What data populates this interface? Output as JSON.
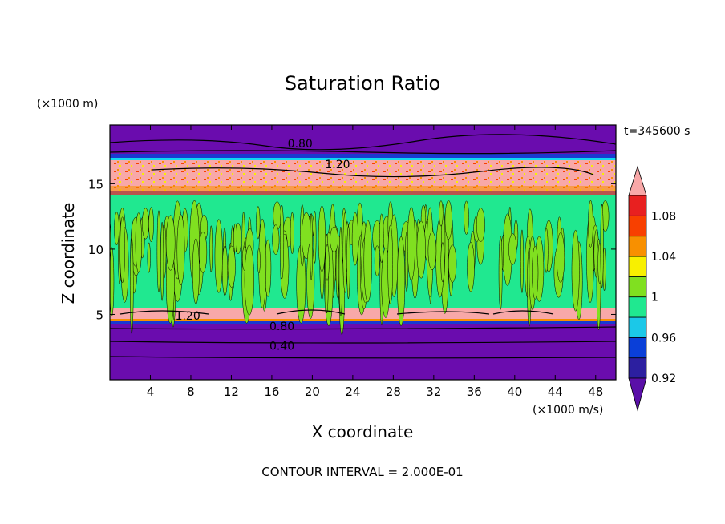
{
  "chart_data": {
    "type": "heatmap",
    "title": "Saturation Ratio",
    "xlabel": "X coordinate",
    "ylabel": "Z coordinate",
    "x_unit": "(×1000 m/s)",
    "y_unit": "(×1000 m)",
    "time_label": "t=345600 s",
    "footer": "CONTOUR INTERVAL = 2.000E-01",
    "xlim": [
      0,
      50
    ],
    "ylim": [
      0,
      19.5
    ],
    "x_ticks": [
      4,
      8,
      12,
      16,
      20,
      24,
      28,
      32,
      36,
      40,
      44,
      48
    ],
    "y_ticks": [
      5,
      10,
      15
    ],
    "colorbar": {
      "levels": [
        0.92,
        0.94,
        0.96,
        0.98,
        1.0,
        1.02,
        1.04,
        1.06,
        1.08,
        1.1
      ],
      "labels": [
        "0.92",
        "0.96",
        "1",
        "1.04",
        "1.08"
      ],
      "label_values": [
        0.92,
        0.96,
        1.0,
        1.04,
        1.08
      ],
      "colors": [
        "#5a0fa8",
        "#2c1fa0",
        "#0a3fd8",
        "#1bc8e8",
        "#20e890",
        "#80e020",
        "#f8f000",
        "#f89000",
        "#f84000",
        "#e82020",
        "#f8a8a8"
      ]
    },
    "contour_labels": [
      {
        "text": "0.80",
        "x": 18.8,
        "z": 18.1
      },
      {
        "text": "1.20",
        "x": 22.5,
        "z": 16.5
      },
      {
        "text": "1.20",
        "x": 7.7,
        "z": 4.9
      },
      {
        "text": "0.80",
        "x": 17.0,
        "z": 4.1
      },
      {
        "text": "0.40",
        "x": 17.0,
        "z": 2.6
      }
    ]
  },
  "colors": {
    "purple": "#6a0cae",
    "indigo": "#3a0fa0",
    "blue": "#1a3ad0",
    "cyan": "#10d8f0",
    "green": "#20e890",
    "lime": "#80e020",
    "yellow": "#f8f000",
    "orange": "#f89000",
    "red": "#f83000",
    "pink": "#f8a8a8"
  }
}
